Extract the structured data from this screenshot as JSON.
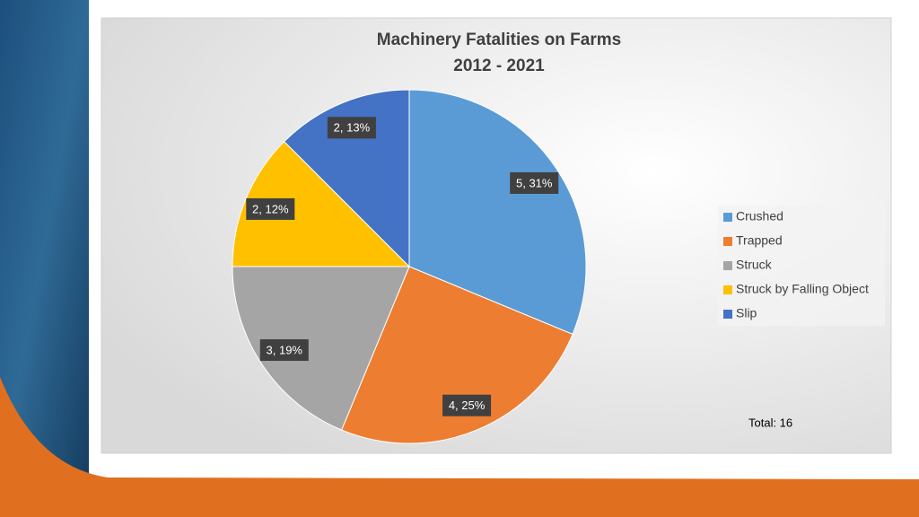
{
  "chart_data": {
    "type": "pie",
    "title": "Machinery Fatalities on Farms",
    "subtitle": "2012 - 2021",
    "categories": [
      "Crushed",
      "Trapped",
      "Struck",
      "Struck by Falling Object",
      "Slip"
    ],
    "values": [
      5,
      4,
      3,
      2,
      2
    ],
    "value_labels": [
      "5, 31%",
      "4, 25%",
      "3, 19%",
      "2, 12%",
      "2, 13%"
    ],
    "colors": [
      "#5b9bd5",
      "#ed7d31",
      "#a5a5a5",
      "#ffc000",
      "#4472c4"
    ],
    "annotation": "Total: 16",
    "legend": "right"
  }
}
